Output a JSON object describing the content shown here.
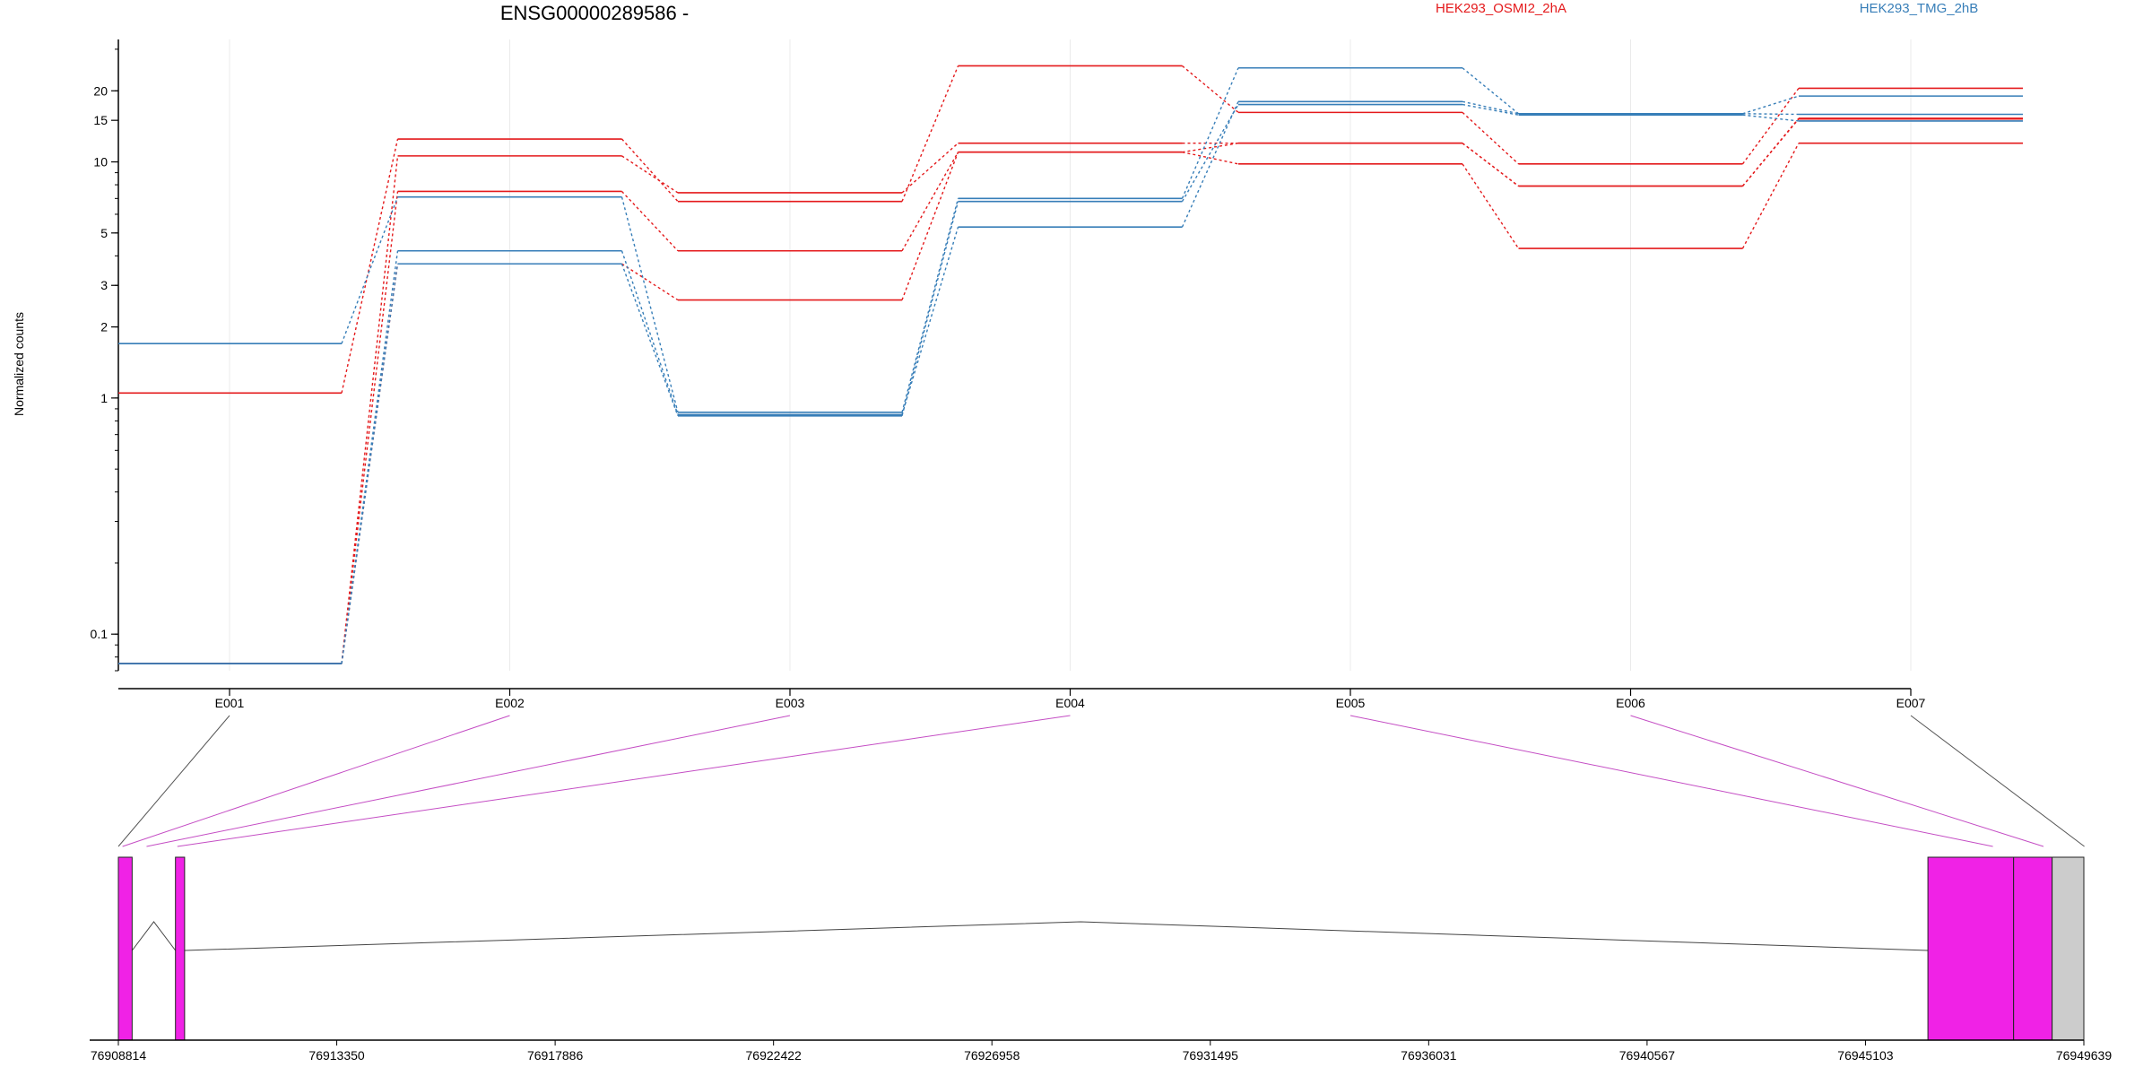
{
  "chart_data": {
    "type": "line",
    "title": "ENSG00000289586 -",
    "ylabel": "Normalized counts",
    "y_scale": "log",
    "ylim": [
      0.07,
      33
    ],
    "y_ticks": [
      {
        "value": 0.1,
        "label": "0.1"
      },
      {
        "value": 1,
        "label": "1"
      },
      {
        "value": 2,
        "label": "2"
      },
      {
        "value": 3,
        "label": "3"
      },
      {
        "value": 5,
        "label": "5"
      },
      {
        "value": 10,
        "label": "10"
      },
      {
        "value": 15,
        "label": "15"
      },
      {
        "value": 20,
        "label": "20"
      }
    ],
    "categories": [
      "E001",
      "E002",
      "E003",
      "E004",
      "E005",
      "E006",
      "E007"
    ],
    "legend": [
      {
        "label": "HEK293_OSMI2_2hA",
        "color": "#e41a1c"
      },
      {
        "label": "HEK293_TMG_2hB",
        "color": "#377eb8"
      }
    ],
    "series": [
      {
        "group": 0,
        "values": [
          1.05,
          12.5,
          6.8,
          25.5,
          16.2,
          9.8,
          20.5
        ]
      },
      {
        "group": 0,
        "values": [
          0.075,
          10.6,
          7.4,
          12.0,
          12.0,
          7.9,
          15.3
        ]
      },
      {
        "group": 0,
        "values": [
          0.075,
          7.5,
          4.2,
          11.0,
          9.8,
          4.3,
          12.0
        ]
      },
      {
        "group": 0,
        "values": [
          0.075,
          3.7,
          2.6,
          11.0,
          12.0,
          7.9,
          15.2
        ]
      },
      {
        "group": 1,
        "values": [
          1.7,
          7.1,
          0.87,
          7.0,
          25.0,
          16.0,
          19.0
        ]
      },
      {
        "group": 1,
        "values": [
          0.075,
          4.2,
          0.85,
          5.3,
          18.0,
          16.0,
          15.9
        ]
      },
      {
        "group": 1,
        "values": [
          0.075,
          3.7,
          0.84,
          6.8,
          17.5,
          15.8,
          14.9
        ]
      }
    ],
    "gene_track": {
      "coord_labels": [
        "76908814",
        "76913350",
        "76917886",
        "76922422",
        "76926958",
        "76931495",
        "76936031",
        "76940567",
        "76945103",
        "76949639"
      ],
      "range": [
        76908814,
        76949639
      ],
      "exons": [
        {
          "start": 76908814,
          "end": 76909100,
          "color": "#f022e6"
        },
        {
          "start": 76910000,
          "end": 76910190,
          "color": "#f022e6"
        },
        {
          "start": 76946400,
          "end": 76948180,
          "color": "#f022e6"
        },
        {
          "start": 76948180,
          "end": 76948980,
          "color": "#f022e6"
        },
        {
          "start": 76948980,
          "end": 76949639,
          "color": "#cccccc"
        }
      ],
      "introns": [
        {
          "start": 76909100,
          "end": 76910000,
          "peak": 76909550
        },
        {
          "start": 76910190,
          "end": 76946400,
          "peak": 76928800
        }
      ],
      "bin_links": [
        76908814,
        76908900,
        76909400,
        76910040,
        76947750,
        76948800,
        76949650
      ],
      "link_colors": [
        "#555555",
        "#c44dc4",
        "#c44dc4",
        "#c44dc4",
        "#c44dc4",
        "#c44dc4",
        "#555555"
      ]
    }
  }
}
